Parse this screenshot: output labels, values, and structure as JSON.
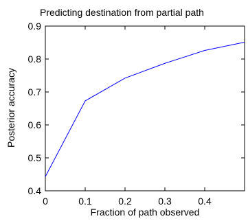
{
  "chart_data": {
    "type": "line",
    "title": "Predicting destination from partial path",
    "xlabel": "Fraction of path observed",
    "ylabel": "Posterior accuracy",
    "xlim": [
      0,
      0.5
    ],
    "ylim": [
      0.4,
      0.9
    ],
    "xticks": [
      "0",
      "0.1",
      "0.2",
      "0.3",
      "0.4"
    ],
    "yticks": [
      "0.4",
      "0.5",
      "0.6",
      "0.7",
      "0.8",
      "0.9"
    ],
    "grid": false,
    "series": [
      {
        "color": "#0000ff",
        "x": [
          0,
          0.1,
          0.2,
          0.3,
          0.4,
          0.5
        ],
        "y": [
          0.443,
          0.673,
          0.742,
          0.787,
          0.826,
          0.851
        ]
      }
    ]
  }
}
